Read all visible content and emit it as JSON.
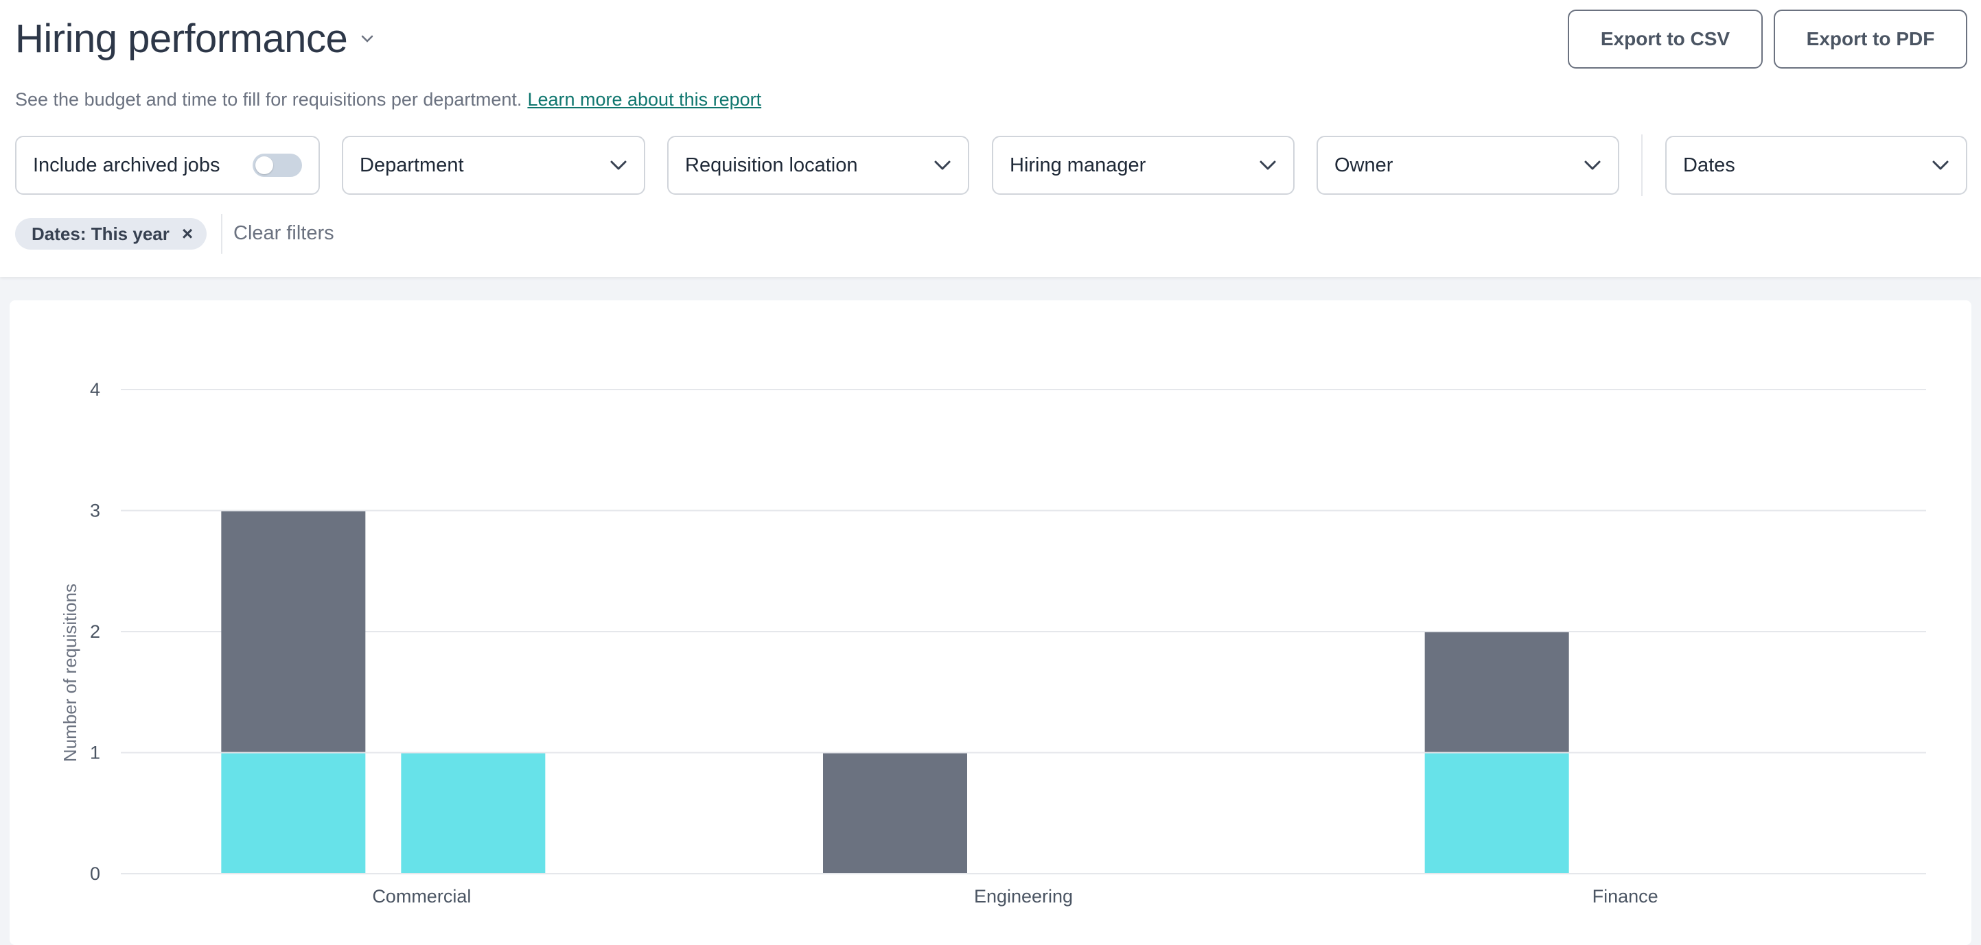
{
  "header": {
    "title": "Hiring performance",
    "subtitle": "See the budget and time to fill for requisitions per department.",
    "learn_more": "Learn more about this report",
    "export_csv": "Export to CSV",
    "export_pdf": "Export to PDF"
  },
  "filters": {
    "archived_label": "Include archived jobs",
    "archived_on": false,
    "department": "Department",
    "location": "Requisition location",
    "manager": "Hiring manager",
    "owner": "Owner",
    "dates": "Dates"
  },
  "active_filters": {
    "chip": "Dates: This year",
    "remove": "×",
    "clear": "Clear filters"
  },
  "colors": {
    "series_a": "#6b7280",
    "series_b": "#67e2e9",
    "grid": "#e5e7eb"
  },
  "chart_data": {
    "type": "bar",
    "ylabel": "Number of requisitions",
    "xlabel": "",
    "ylim": [
      0,
      4
    ],
    "yticks": [
      0,
      1,
      2,
      3,
      4
    ],
    "categories": [
      "Commercial",
      "Engineering",
      "Finance"
    ],
    "stacks": [
      {
        "segments": [
          {
            "color": "series_b",
            "values": [
              1,
              0,
              1
            ]
          },
          {
            "color": "series_a",
            "values": [
              2,
              1,
              1
            ]
          }
        ]
      },
      {
        "segments": [
          {
            "color": "series_b",
            "values": [
              1,
              0,
              0
            ]
          }
        ]
      }
    ]
  }
}
